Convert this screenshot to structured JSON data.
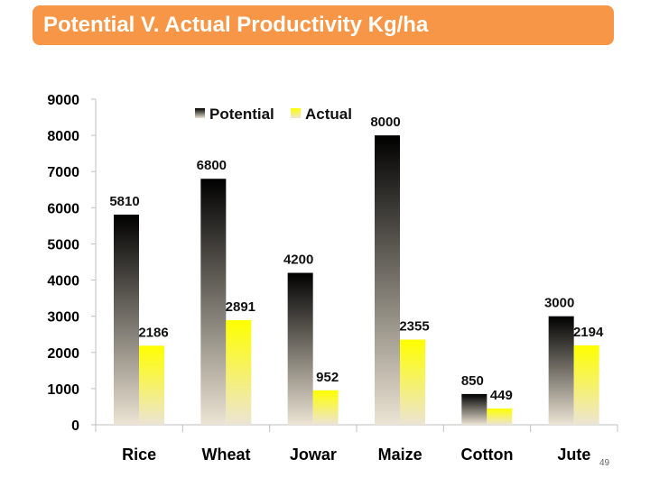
{
  "slide": {
    "title": "Potential V. Actual Productivity Kg/ha",
    "page_number": "49"
  },
  "colors": {
    "title_bg": "#f79646",
    "title_text": "#ffffff",
    "potential_top": "#000000",
    "potential_bottom": "#ece4d4",
    "actual_top": "#ffff00",
    "actual_bottom": "#ece4d4"
  },
  "chart_data": {
    "type": "bar",
    "title": "Potential V. Actual Productivity Kg/ha",
    "categories": [
      "Rice",
      "Wheat",
      "Jowar",
      "Maize",
      "Cotton",
      "Jute"
    ],
    "series": [
      {
        "name": "Potential",
        "values": [
          5810,
          6800,
          4200,
          8000,
          850,
          3000
        ]
      },
      {
        "name": "Actual",
        "values": [
          2186,
          2891,
          952,
          2355,
          449,
          2194
        ]
      }
    ],
    "ylim": [
      0,
      9000
    ],
    "yticks": [
      "0",
      "1000",
      "2000",
      "3000",
      "4000",
      "5000",
      "6000",
      "7000",
      "8000",
      "9000"
    ],
    "xlabel": "",
    "ylabel": "",
    "legend": "top-center",
    "grid": false
  }
}
